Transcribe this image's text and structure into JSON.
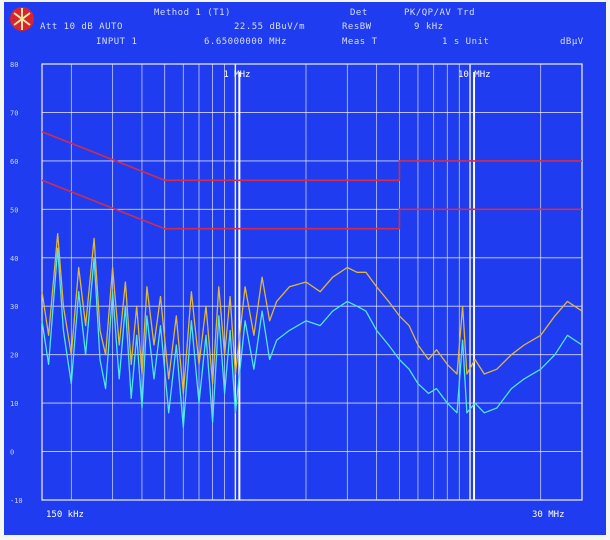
{
  "header": {
    "method": "Method 1 (T1)",
    "attenuation": "Att 10 dB AUTO",
    "scale": "22.55 dBuV/m",
    "input": "INPUT 1",
    "frequency": "6.65000000 MHz",
    "det_label": "Det",
    "det_value": "PK/QP/AV Trd",
    "resbw_label": "ResBW",
    "resbw_value": "9 kHz",
    "meas_label": "Meas T",
    "meas_value": "1 s Unit",
    "unit": "dBµV"
  },
  "colors": {
    "screen_bg": "#1f3cf0",
    "grid": "#f0f0ff",
    "limit_line": "#d02e4a",
    "peak_trace": "#e0b83c",
    "avg_trace": "#4fe6e6"
  },
  "chart_data": {
    "type": "line",
    "x_scale": "log",
    "xlim_hz": [
      150000,
      30000000
    ],
    "ylim": [
      -10,
      80
    ],
    "y_ticks": [
      "80",
      "70",
      "60",
      "50",
      "40",
      "30",
      "20",
      "10",
      "0",
      "-10"
    ],
    "x_labels": {
      "start": "150 kHz",
      "end": "30 MHz"
    },
    "markers": [
      {
        "label": "1 MHz",
        "freq_hz": 1000000
      },
      {
        "label": "10 MHz",
        "freq_hz": 10000000
      }
    ],
    "limit_lines": [
      {
        "name": "QP",
        "points": [
          [
            150000,
            66
          ],
          [
            500000,
            56
          ],
          [
            5000000,
            56
          ],
          [
            5000000,
            60
          ],
          [
            30000000,
            60
          ]
        ]
      },
      {
        "name": "AV",
        "points": [
          [
            150000,
            56
          ],
          [
            500000,
            46
          ],
          [
            5000000,
            46
          ],
          [
            5000000,
            50
          ],
          [
            30000000,
            50
          ]
        ]
      }
    ],
    "series": [
      {
        "points": [
          [
            150000,
            33
          ],
          [
            160000,
            24
          ],
          [
            175000,
            45
          ],
          [
            185000,
            30
          ],
          [
            200000,
            20
          ],
          [
            215000,
            38
          ],
          [
            230000,
            26
          ],
          [
            250000,
            44
          ],
          [
            265000,
            25
          ],
          [
            280000,
            20
          ],
          [
            300000,
            38
          ],
          [
            320000,
            22
          ],
          [
            340000,
            35
          ],
          [
            360000,
            18
          ],
          [
            380000,
            30
          ],
          [
            400000,
            16
          ],
          [
            420000,
            34
          ],
          [
            450000,
            22
          ],
          [
            480000,
            32
          ],
          [
            520000,
            15
          ],
          [
            560000,
            28
          ],
          [
            600000,
            12
          ],
          [
            650000,
            33
          ],
          [
            700000,
            18
          ],
          [
            750000,
            30
          ],
          [
            800000,
            14
          ],
          [
            850000,
            34
          ],
          [
            900000,
            20
          ],
          [
            950000,
            32
          ],
          [
            1000000,
            16
          ],
          [
            1100000,
            34
          ],
          [
            1200000,
            24
          ],
          [
            1300000,
            36
          ],
          [
            1400000,
            27
          ],
          [
            1500000,
            31
          ],
          [
            1700000,
            34
          ],
          [
            2000000,
            35
          ],
          [
            2300000,
            33
          ],
          [
            2600000,
            36
          ],
          [
            3000000,
            38
          ],
          [
            3300000,
            37
          ],
          [
            3600000,
            37
          ],
          [
            4000000,
            34
          ],
          [
            4500000,
            31
          ],
          [
            5000000,
            28
          ],
          [
            5500000,
            26
          ],
          [
            6000000,
            22
          ],
          [
            6650000,
            19
          ],
          [
            7200000,
            21
          ],
          [
            8000000,
            18
          ],
          [
            8800000,
            16
          ],
          [
            9300000,
            30
          ],
          [
            9700000,
            16
          ],
          [
            10500000,
            19
          ],
          [
            11500000,
            16
          ],
          [
            13000000,
            17
          ],
          [
            15000000,
            20
          ],
          [
            17000000,
            22
          ],
          [
            20000000,
            24
          ],
          [
            23000000,
            28
          ],
          [
            26000000,
            31
          ],
          [
            30000000,
            29
          ]
        ]
      },
      {
        "points": [
          [
            150000,
            27
          ],
          [
            160000,
            18
          ],
          [
            175000,
            42
          ],
          [
            185000,
            25
          ],
          [
            200000,
            14
          ],
          [
            215000,
            33
          ],
          [
            230000,
            20
          ],
          [
            250000,
            40
          ],
          [
            265000,
            19
          ],
          [
            280000,
            13
          ],
          [
            300000,
            33
          ],
          [
            320000,
            15
          ],
          [
            340000,
            30
          ],
          [
            360000,
            11
          ],
          [
            380000,
            24
          ],
          [
            400000,
            9
          ],
          [
            420000,
            28
          ],
          [
            450000,
            15
          ],
          [
            480000,
            26
          ],
          [
            520000,
            8
          ],
          [
            560000,
            22
          ],
          [
            600000,
            5
          ],
          [
            650000,
            27
          ],
          [
            700000,
            10
          ],
          [
            750000,
            24
          ],
          [
            800000,
            6
          ],
          [
            850000,
            28
          ],
          [
            900000,
            12
          ],
          [
            950000,
            25
          ],
          [
            1000000,
            8
          ],
          [
            1100000,
            27
          ],
          [
            1200000,
            17
          ],
          [
            1300000,
            29
          ],
          [
            1400000,
            19
          ],
          [
            1500000,
            23
          ],
          [
            1700000,
            25
          ],
          [
            2000000,
            27
          ],
          [
            2300000,
            26
          ],
          [
            2600000,
            29
          ],
          [
            3000000,
            31
          ],
          [
            3300000,
            30
          ],
          [
            3600000,
            29
          ],
          [
            4000000,
            25
          ],
          [
            4500000,
            22
          ],
          [
            5000000,
            19
          ],
          [
            5500000,
            17
          ],
          [
            6000000,
            14
          ],
          [
            6650000,
            12
          ],
          [
            7200000,
            13
          ],
          [
            8000000,
            10
          ],
          [
            8800000,
            8
          ],
          [
            9300000,
            23
          ],
          [
            9700000,
            8
          ],
          [
            10500000,
            10
          ],
          [
            11500000,
            8
          ],
          [
            13000000,
            9
          ],
          [
            15000000,
            13
          ],
          [
            17000000,
            15
          ],
          [
            20000000,
            17
          ],
          [
            23000000,
            20
          ],
          [
            26000000,
            24
          ],
          [
            30000000,
            22
          ]
        ]
      }
    ]
  }
}
